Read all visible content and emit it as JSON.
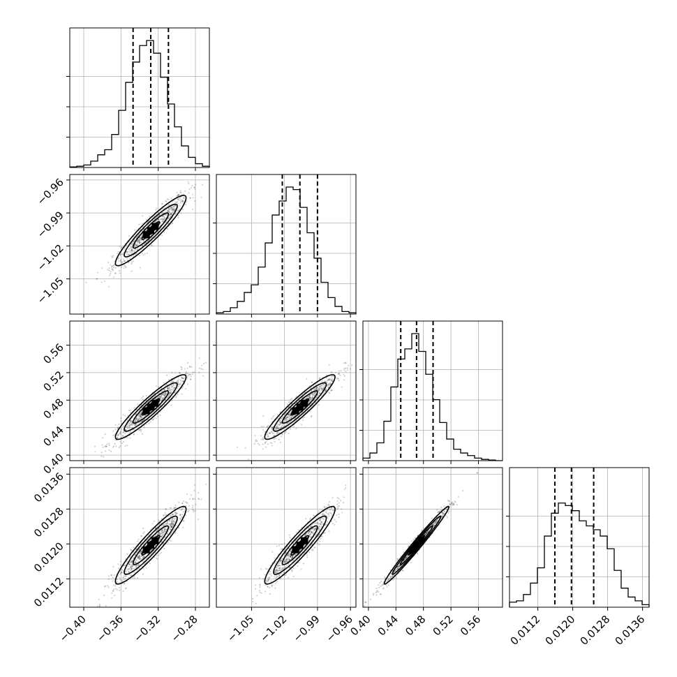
{
  "chart_data": {
    "type": "corner",
    "params": [
      {
        "range": [
          -0.415,
          -0.265
        ],
        "median": -0.328,
        "q16": -0.347,
        "q84": -0.309,
        "ticks": [
          "−0.40",
          "−0.36",
          "−0.32",
          "−0.28"
        ],
        "tick_values": [
          -0.4,
          -0.36,
          -0.32,
          -0.28
        ]
      },
      {
        "range": [
          -1.082,
          -0.955
        ],
        "median": -1.006,
        "q16": -1.022,
        "q84": -0.99,
        "ticks": [
          "−1.05",
          "−1.02",
          "−0.99",
          "−0.96"
        ],
        "tick_values": [
          -1.05,
          -1.02,
          -0.99,
          -0.96
        ]
      },
      {
        "range": [
          0.392,
          0.595
        ],
        "median": 0.47,
        "q16": 0.447,
        "q84": 0.494,
        "ticks": [
          "0.40",
          "0.44",
          "0.48",
          "0.52",
          "0.56"
        ],
        "tick_values": [
          0.4,
          0.44,
          0.48,
          0.52,
          0.56
        ]
      },
      {
        "range": [
          0.01055,
          0.01375
        ],
        "median": 0.01197,
        "q16": 0.01159,
        "q84": 0.01248,
        "ticks": [
          "0.0112",
          "0.0120",
          "0.0128",
          "0.0136"
        ],
        "tick_values": [
          0.0112,
          0.012,
          0.0128,
          0.0136
        ]
      }
    ],
    "histograms": [
      [
        0.005,
        0.01,
        0.02,
        0.05,
        0.1,
        0.14,
        0.26,
        0.45,
        0.67,
        0.83,
        0.96,
        1.0,
        0.9,
        0.71,
        0.5,
        0.32,
        0.17,
        0.08,
        0.03,
        0.01
      ],
      [
        0.01,
        0.02,
        0.05,
        0.1,
        0.17,
        0.23,
        0.37,
        0.56,
        0.78,
        0.89,
        1.0,
        0.98,
        0.84,
        0.64,
        0.44,
        0.25,
        0.13,
        0.06,
        0.02,
        0.01
      ],
      [
        0.02,
        0.06,
        0.14,
        0.31,
        0.58,
        0.8,
        0.88,
        1.0,
        0.86,
        0.68,
        0.48,
        0.3,
        0.17,
        0.09,
        0.06,
        0.04,
        0.02,
        0.01,
        0.005,
        0.0
      ],
      [
        0.04,
        0.05,
        0.1,
        0.19,
        0.31,
        0.56,
        0.74,
        0.82,
        0.8,
        0.76,
        0.68,
        0.64,
        0.61,
        0.56,
        0.46,
        0.29,
        0.15,
        0.08,
        0.05,
        0.02
      ]
    ],
    "grid": true,
    "quantile_lines": "dashed"
  }
}
